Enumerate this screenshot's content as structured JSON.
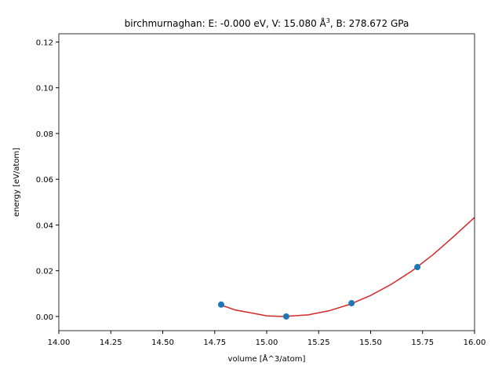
{
  "chart_data": {
    "type": "scatter",
    "title": [
      "birchmurnaghan: E: -0.000 eV, V: 15.080 Å",
      "3",
      ", B: 278.672 GPa"
    ],
    "x_label": "volume [Å^3/atom]",
    "y_label": "energy [eV/atom]",
    "xlim": [
      14.0,
      16.0
    ],
    "ylim": [
      -0.0062,
      0.1236
    ],
    "xticks": [
      {
        "value": 14.0,
        "label": "14.00"
      },
      {
        "value": 14.25,
        "label": "14.25"
      },
      {
        "value": 14.5,
        "label": "14.50"
      },
      {
        "value": 14.75,
        "label": "14.75"
      },
      {
        "value": 15.0,
        "label": "15.00"
      },
      {
        "value": 15.25,
        "label": "15.25"
      },
      {
        "value": 15.5,
        "label": "15.50"
      },
      {
        "value": 15.75,
        "label": "15.75"
      },
      {
        "value": 16.0,
        "label": "16.00"
      }
    ],
    "yticks": [
      {
        "value": 0.0,
        "label": "0.00"
      },
      {
        "value": 0.02,
        "label": "0.02"
      },
      {
        "value": 0.04,
        "label": "0.04"
      },
      {
        "value": 0.06,
        "label": "0.06"
      },
      {
        "value": 0.08,
        "label": "0.08"
      },
      {
        "value": 0.1,
        "label": "0.10"
      },
      {
        "value": 0.12,
        "label": "0.12"
      }
    ],
    "series": [
      {
        "kind": "line",
        "color": "#d62728",
        "x": [
          14.78,
          14.85,
          14.9,
          15.0,
          15.08,
          15.2,
          15.3,
          15.4,
          15.5,
          15.6,
          15.7,
          15.8,
          15.9,
          16.0
        ],
        "values": [
          0.005,
          0.0028,
          0.002,
          0.0003,
          0.0,
          0.0007,
          0.0025,
          0.0053,
          0.0092,
          0.0141,
          0.02,
          0.027,
          0.035,
          0.0433
        ]
      },
      {
        "kind": "points",
        "color": "#1f77b4",
        "x": [
          14.781,
          15.094,
          15.408,
          15.725
        ],
        "values": [
          0.0052,
          0.0,
          0.0058,
          0.0216
        ]
      }
    ]
  }
}
